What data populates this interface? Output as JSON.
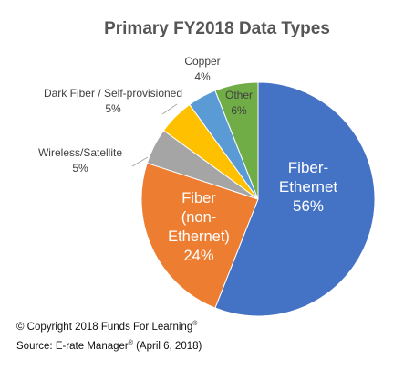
{
  "chart_data": {
    "type": "pie",
    "title": "Primary FY2018 Data Types",
    "slices": [
      {
        "label": "Fiber-Ethernet",
        "label_lines": [
          "Fiber-",
          "Ethernet"
        ],
        "value": 56,
        "pct_text": "56%",
        "color": "#4472C4",
        "label_pos": "inside"
      },
      {
        "label": "Fiber (non-Ethernet)",
        "label_lines": [
          "Fiber",
          "(non-",
          "Ethernet)"
        ],
        "value": 24,
        "pct_text": "24%",
        "color": "#ED7D31",
        "label_pos": "inside"
      },
      {
        "label": "Wireless/Satellite",
        "label_lines": [
          "Wireless/Satellite"
        ],
        "value": 5,
        "pct_text": "5%",
        "color": "#A5A5A5",
        "label_pos": "outside"
      },
      {
        "label": "Dark Fiber / Self-provisioned",
        "label_lines": [
          "Dark Fiber / Self-provisioned"
        ],
        "value": 5,
        "pct_text": "5%",
        "color": "#FFC000",
        "label_pos": "outside"
      },
      {
        "label": "Copper",
        "label_lines": [
          "Copper"
        ],
        "value": 4,
        "pct_text": "4%",
        "color": "#5B9BD5",
        "label_pos": "outside"
      },
      {
        "label": "Other",
        "label_lines": [
          "Other"
        ],
        "value": 6,
        "pct_text": "6%",
        "color": "#70AD47",
        "label_pos": "inside"
      }
    ]
  },
  "footer": {
    "copyright_main": "© Copyright 2018 Funds For Learning",
    "copyright_mark": "®",
    "source_main": "Source: E-rate Manager",
    "source_mark": "®",
    "source_rest": " (April 6, 2018)"
  }
}
